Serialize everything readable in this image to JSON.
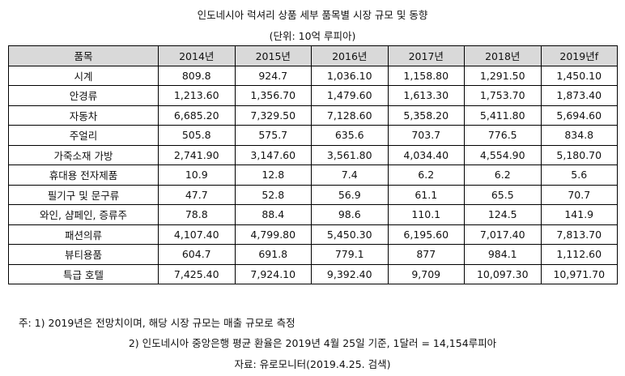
{
  "title": "인도네시아 럭셔리 상품 세부 품목별 시장 규모 및 동향",
  "unit": "(단위: 10억 루피아)",
  "table": {
    "headers": [
      "품목",
      "2014년",
      "2015년",
      "2016년",
      "2017년",
      "2018년",
      "2019년f"
    ],
    "rows": [
      [
        "시계",
        "809.8",
        "924.7",
        "1,036.10",
        "1,158.80",
        "1,291.50",
        "1,450.10"
      ],
      [
        "안경류",
        "1,213.60",
        "1,356.70",
        "1,479.60",
        "1,613.30",
        "1,753.70",
        "1,873.40"
      ],
      [
        "자동차",
        "6,685.20",
        "7,329.50",
        "7,128.60",
        "5,358.20",
        "5,411.80",
        "5,694.60"
      ],
      [
        "주얼리",
        "505.8",
        "575.7",
        "635.6",
        "703.7",
        "776.5",
        "834.8"
      ],
      [
        "가죽소재 가방",
        "2,741.90",
        "3,147.60",
        "3,561.80",
        "4,034.40",
        "4,554.90",
        "5,180.70"
      ],
      [
        "휴대용 전자제품",
        "10.9",
        "12.8",
        "7.4",
        "6.2",
        "6.2",
        "5.6"
      ],
      [
        "필기구 및 문구류",
        "47.7",
        "52.8",
        "56.9",
        "61.1",
        "65.5",
        "70.7"
      ],
      [
        "와인, 샴페인, 증류주",
        "78.8",
        "88.4",
        "98.6",
        "110.1",
        "124.5",
        "141.9"
      ],
      [
        "패션의류",
        "4,107.40",
        "4,799.80",
        "5,450.30",
        "6,195.60",
        "7,017.40",
        "7,813.70"
      ],
      [
        "뷰티용품",
        "604.7",
        "691.8",
        "779.1",
        "877",
        "984.1",
        "1,112.60"
      ],
      [
        "특급 호텔",
        "7,425.40",
        "7,924.10",
        "9,392.40",
        "9,709",
        "10,097.30",
        "10,971.70"
      ]
    ]
  },
  "notes": {
    "note1": "주: 1) 2019년은 전망치이며, 해당 시장 규모는 매출 규모로 측정",
    "note2": "2) 인도네시아 중앙은행 평균 환율은 2019년 4월 25일 기준, 1달러 = 14,154루피아",
    "source": "자료: 유로모니터(2019.4.25. 검색)"
  }
}
